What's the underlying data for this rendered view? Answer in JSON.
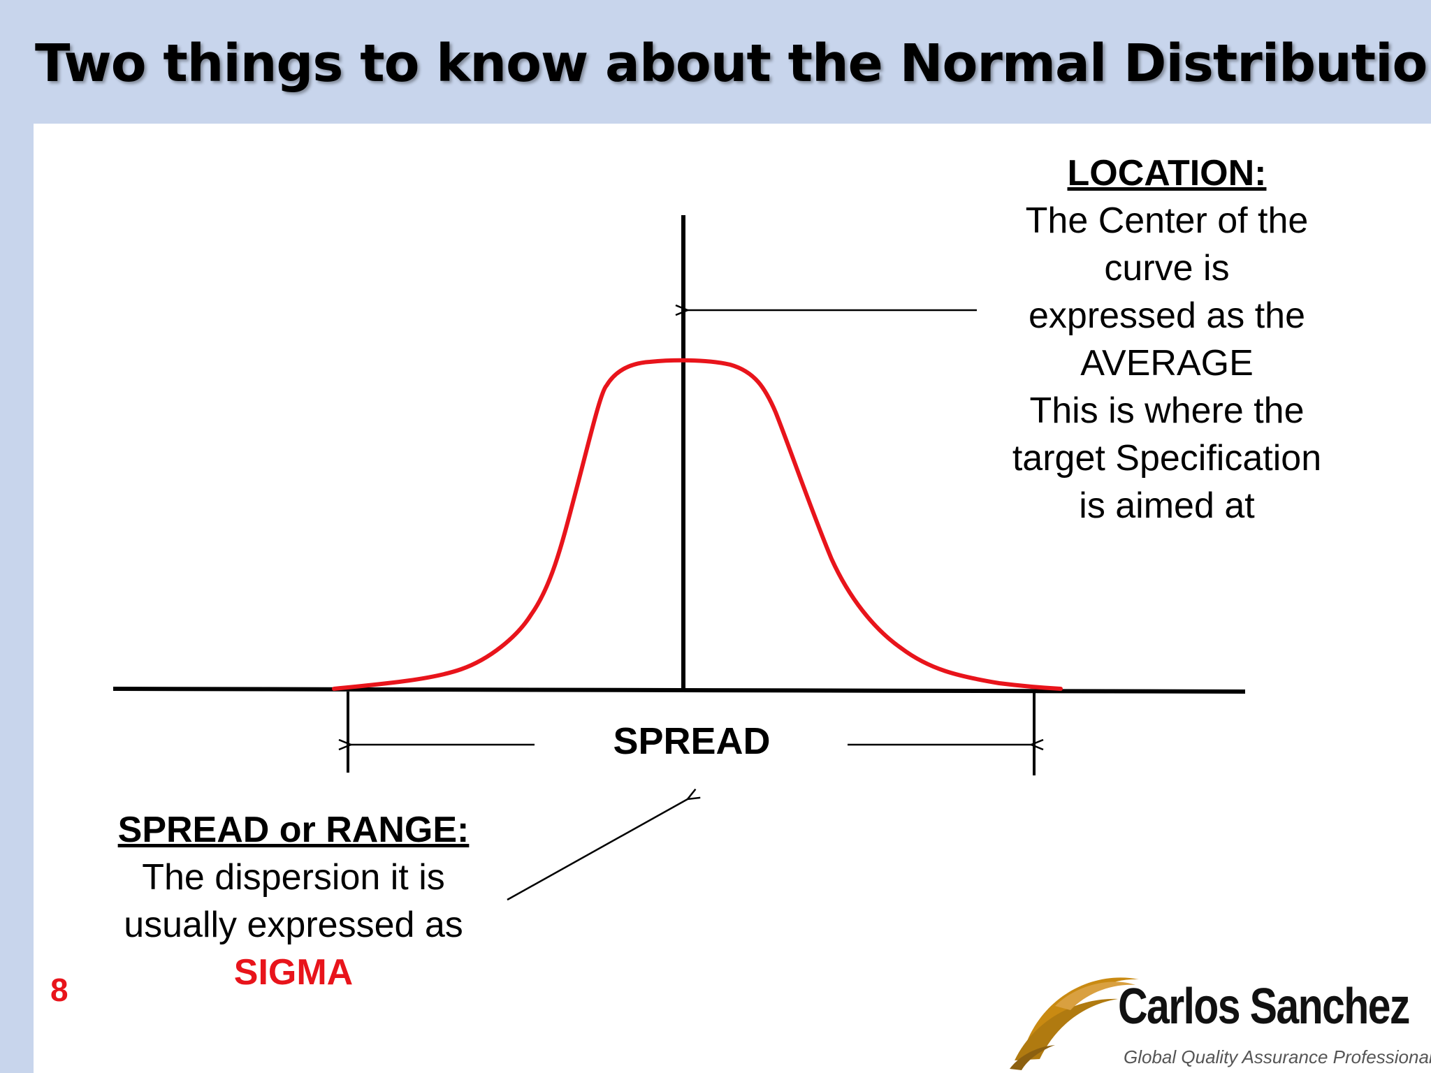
{
  "title": "Two things to know about the Normal Distribution",
  "location": {
    "heading": "LOCATION:",
    "lines": [
      "The Center of the",
      "curve is",
      "expressed as the",
      "AVERAGE",
      "This is where the",
      "target Specification",
      "is aimed at"
    ]
  },
  "spread_label": "SPREAD",
  "spread_range": {
    "heading": "SPREAD or RANGE:",
    "lines": [
      "The dispersion it is",
      "usually expressed as"
    ],
    "emphasis": "SIGMA"
  },
  "page_number": "8",
  "logo": {
    "name": "Carlos Sanchez",
    "tagline": "Global Quality Assurance Professional"
  },
  "colors": {
    "curve": "#e8141b",
    "sigma": "#e8141b",
    "header_band": "#c8d5ec",
    "logo_accent": "#c98a12"
  }
}
